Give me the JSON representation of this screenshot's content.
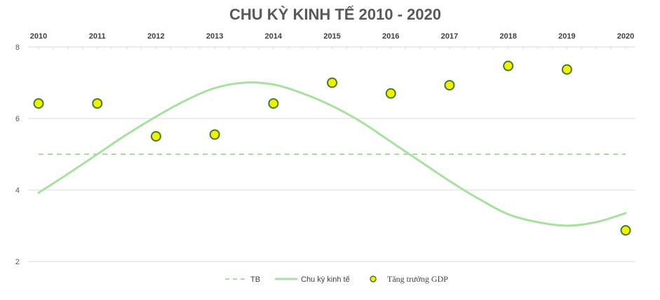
{
  "chart_data": {
    "type": "line",
    "title": "CHU KỲ KINH TẾ 2010 - 2020",
    "x_ticks": [
      "2010",
      "2011",
      "2012",
      "2013",
      "2014",
      "2015",
      "2016",
      "2017",
      "2018",
      "2019",
      "2020"
    ],
    "ylim": [
      2,
      8
    ],
    "y_ticks": [
      "2",
      "4",
      "6",
      "8"
    ],
    "grid": true,
    "legend_position": "bottom",
    "series": [
      {
        "name": "TB",
        "style": "dashed",
        "color": "#a9dfa0",
        "x": [
          2010,
          2020
        ],
        "values": [
          5.0,
          5.0
        ]
      },
      {
        "name": "Chu kỳ kinh tế",
        "style": "smooth-line",
        "color": "#a9dfa0",
        "x": [
          2010,
          2010.5,
          2011,
          2011.5,
          2012,
          2012.5,
          2013,
          2013.5,
          2014,
          2014.5,
          2015,
          2015.5,
          2016,
          2016.5,
          2017,
          2017.5,
          2018,
          2018.5,
          2019,
          2019.5,
          2020
        ],
        "values": [
          3.92,
          4.45,
          5.0,
          5.55,
          6.05,
          6.5,
          6.85,
          7.0,
          6.95,
          6.7,
          6.35,
          5.9,
          5.35,
          4.8,
          4.25,
          3.75,
          3.32,
          3.1,
          3.0,
          3.1,
          3.35
        ]
      },
      {
        "name": "Tăng trưởng GDP",
        "style": "markers",
        "color": "#eef200",
        "x": [
          2010,
          2011,
          2012,
          2013,
          2014,
          2015,
          2016,
          2017,
          2018,
          2019,
          2020
        ],
        "values": [
          6.42,
          6.42,
          5.5,
          5.55,
          6.42,
          7.0,
          6.7,
          6.93,
          7.47,
          7.37,
          2.87
        ]
      }
    ]
  },
  "colors": {
    "title": "#595959",
    "grid": "#d9d9d9",
    "axis_text": "#404040",
    "line": "#a9dfa0",
    "marker_fill": "#eef200",
    "marker_stroke": "#4a7a1c"
  }
}
